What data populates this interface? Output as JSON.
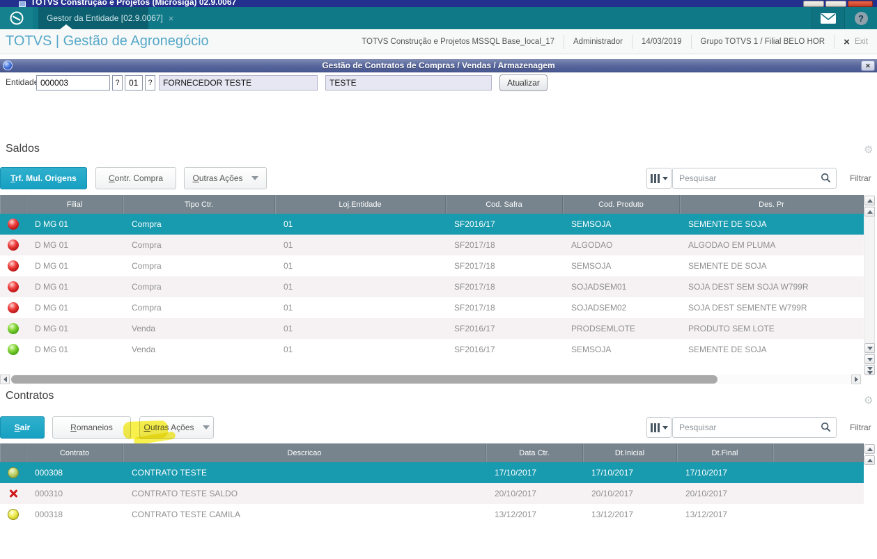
{
  "window": {
    "title": "TOTVS Construção e Projetos (Microsiga) 02.9.0067"
  },
  "tab_bar": {
    "tab_label": "Gestor da Entidade [02.9.0067]",
    "tab_close": "×"
  },
  "header": {
    "brand": "TOTVS | Gestão de Agronegócio",
    "environment": "TOTVS Construção e Projetos MSSQL Base_local_17",
    "user": "Administrador",
    "date": "14/03/2019",
    "group": "Grupo TOTVS 1 / Filial BELO HOR",
    "exit_x": "×",
    "exit_label": "Exit"
  },
  "dialog": {
    "title": "Gestão de Contratos de Compras / Vendas / Armazenagem",
    "close": "×",
    "entity": {
      "label": "Entidade",
      "code": "000003",
      "lookup_label": "?",
      "store": "01",
      "name": "FORNECEDOR TESTE",
      "short_name": "TESTE",
      "refresh_label": "Atualizar"
    }
  },
  "icons": {
    "gear_glyph": "⚙",
    "help_glyph": "?"
  },
  "saldos": {
    "title": "Saldos",
    "buttons": [
      {
        "label": "Trf. Mul. Origens",
        "primary": true
      },
      {
        "label": "Contr. Compra",
        "primary": false
      },
      {
        "label": "Outras Ações",
        "primary": false,
        "dropdown": true
      }
    ],
    "search_placeholder": "Pesquisar",
    "filter_label": "Filtrar",
    "columns": [
      "",
      "Filial",
      "Tipo Ctr.",
      "Loj.Entidade",
      "Cod. Safra",
      "Cod. Produto",
      "Des. Pr"
    ],
    "rows": [
      {
        "status": "red",
        "selected": true,
        "cells": [
          "D MG 01",
          "Compra",
          "01",
          "SF2016/17",
          "SEMSOJA",
          "SEMENTE DE SOJA"
        ]
      },
      {
        "status": "red",
        "selected": false,
        "cells": [
          "D MG 01",
          "Compra",
          "01",
          "SF2017/18",
          "ALGODAO",
          "ALGODAO EM PLUMA"
        ]
      },
      {
        "status": "red",
        "selected": false,
        "cells": [
          "D MG 01",
          "Compra",
          "01",
          "SF2017/18",
          "SEMSOJA",
          "SEMENTE DE SOJA"
        ]
      },
      {
        "status": "red",
        "selected": false,
        "cells": [
          "D MG 01",
          "Compra",
          "01",
          "SF2017/18",
          "SOJADSEM01",
          "SOJA DEST SEM SOJA W799R"
        ]
      },
      {
        "status": "red",
        "selected": false,
        "cells": [
          "D MG 01",
          "Compra",
          "01",
          "SF2017/18",
          "SOJADSEM02",
          "SOJA DEST SEMENTE W799R"
        ]
      },
      {
        "status": "green",
        "selected": false,
        "cells": [
          "D MG 01",
          "Venda",
          "01",
          "SF2016/17",
          "PRODSEMLOTE",
          "PRODUTO SEM LOTE"
        ]
      },
      {
        "status": "green",
        "selected": false,
        "cells": [
          "D MG 01",
          "Venda",
          "01",
          "SF2016/17",
          "SEMSOJA",
          "SEMENTE DE SOJA"
        ]
      }
    ]
  },
  "contratos": {
    "title": "Contratos",
    "buttons": [
      {
        "label": "Sair",
        "primary": true
      },
      {
        "label": "Romaneios",
        "primary": false
      },
      {
        "label": "Outras Ações",
        "primary": false,
        "dropdown": true,
        "highlighted": true
      }
    ],
    "search_placeholder": "Pesquisar",
    "filter_label": "Filtrar",
    "columns": [
      "",
      "Contrato",
      "Descricao",
      "Data Ctr.",
      "Dt.Inicial",
      "Dt.Final",
      ""
    ],
    "rows": [
      {
        "status": "olive",
        "selected": true,
        "cells": [
          "000308",
          "CONTRATO TESTE",
          "17/10/2017",
          "17/10/2017",
          "17/10/2017"
        ]
      },
      {
        "status": "cross",
        "selected": false,
        "cells": [
          "000310",
          "CONTRATO TESTE SALDO",
          "20/10/2017",
          "20/10/2017",
          "20/10/2017"
        ]
      },
      {
        "status": "yellow",
        "selected": false,
        "cells": [
          "000318",
          "CONTRATO TESTE CAMILA",
          "13/12/2017",
          "13/12/2017",
          "13/12/2017"
        ]
      }
    ]
  }
}
